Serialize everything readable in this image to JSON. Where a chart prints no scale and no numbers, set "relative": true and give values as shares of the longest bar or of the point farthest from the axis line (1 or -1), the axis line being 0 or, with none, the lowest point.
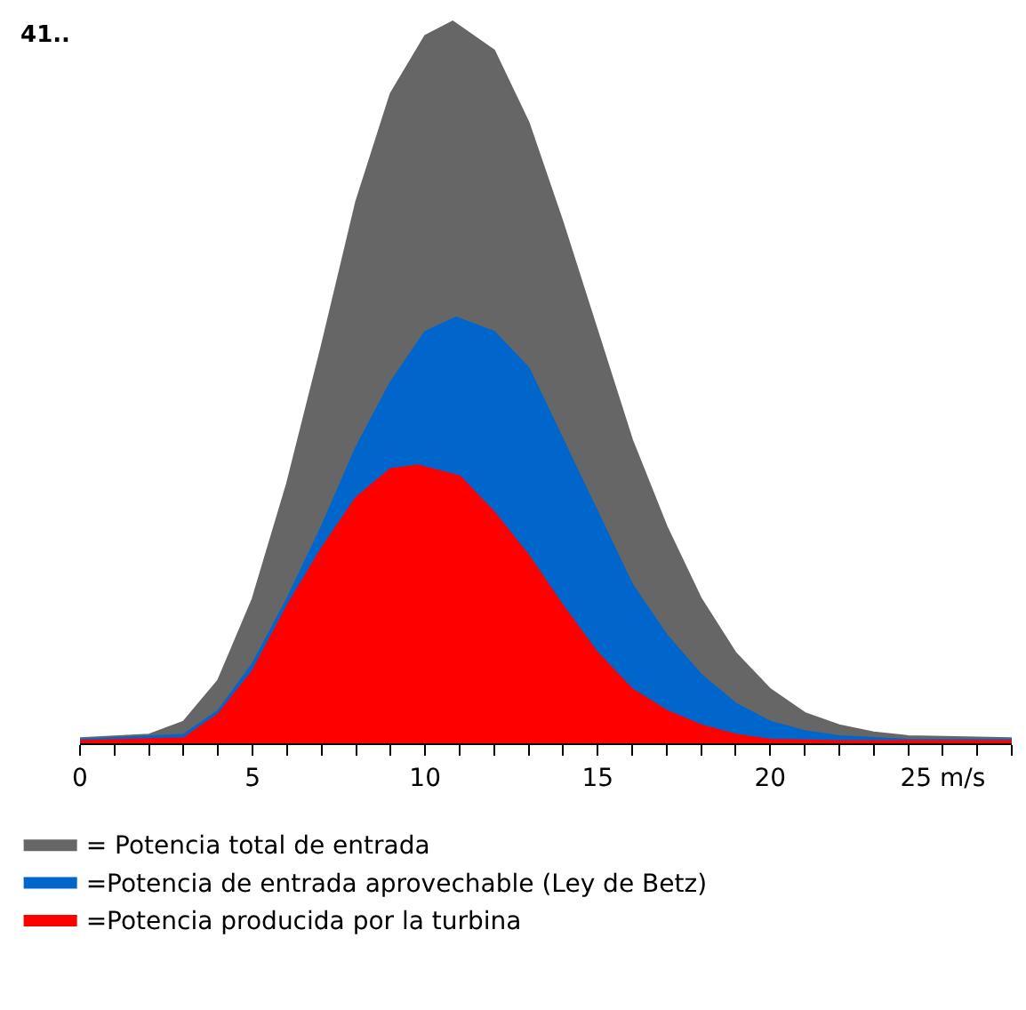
{
  "chart_data": {
    "type": "area",
    "title": "41..",
    "relative": true,
    "legend": "bottom",
    "grid": false,
    "xlim": [
      0,
      27
    ],
    "xticks": [
      0,
      {
        "value": 1,
        "label": null
      },
      {
        "value": 2,
        "label": null
      },
      {
        "value": 3,
        "label": null
      },
      {
        "value": 4,
        "label": null
      },
      5,
      {
        "value": 6,
        "label": null
      },
      {
        "value": 7,
        "label": null
      },
      {
        "value": 8,
        "label": null
      },
      {
        "value": 9,
        "label": null
      },
      10,
      {
        "value": 11,
        "label": null
      },
      {
        "value": 12,
        "label": null
      },
      {
        "value": 13,
        "label": null
      },
      {
        "value": 14,
        "label": null
      },
      15,
      {
        "value": 16,
        "label": null
      },
      {
        "value": 17,
        "label": null
      },
      {
        "value": 18,
        "label": null
      },
      {
        "value": 19,
        "label": null
      },
      20,
      {
        "value": 21,
        "label": null
      },
      {
        "value": 22,
        "label": null
      },
      {
        "value": 23,
        "label": null
      },
      {
        "value": 24,
        "label": null
      },
      {
        "value": 25,
        "label": "25 m/s"
      },
      {
        "value": 26,
        "label": null
      },
      {
        "value": 27,
        "label": null
      }
    ],
    "series": [
      {
        "name": "= Potencia total de entrada",
        "color": "#666666",
        "x": [
          0,
          2,
          3,
          4,
          5,
          6,
          7,
          8,
          9,
          10,
          10.8,
          12,
          13,
          14,
          15,
          16,
          17,
          18,
          19,
          20,
          21,
          22,
          23,
          24,
          27
        ],
        "values": [
          0.007,
          0.012,
          0.03,
          0.087,
          0.2,
          0.36,
          0.55,
          0.75,
          0.9,
          0.98,
          1,
          0.96,
          0.86,
          0.72,
          0.57,
          0.42,
          0.3,
          0.2,
          0.125,
          0.075,
          0.042,
          0.025,
          0.015,
          0.01,
          0.007
        ]
      },
      {
        "name": "=Potencia de entrada aprovechable (Ley de Betz)",
        "color": "#0066cc",
        "x": [
          0,
          3,
          4,
          5,
          6,
          7,
          8,
          9,
          10,
          10.9,
          12,
          13,
          14,
          15,
          16,
          17,
          18,
          19,
          20,
          21,
          22,
          24,
          27
        ],
        "values": [
          0.005,
          0.012,
          0.045,
          0.11,
          0.2,
          0.3,
          0.41,
          0.5,
          0.57,
          0.59,
          0.57,
          0.52,
          0.42,
          0.32,
          0.22,
          0.15,
          0.095,
          0.055,
          0.03,
          0.017,
          0.01,
          0.005,
          0.005
        ]
      },
      {
        "name": "=Potencia producida por la turbina",
        "color": "#ff0000",
        "x": [
          0,
          3,
          4,
          5,
          6,
          7,
          8,
          9,
          9.8,
          11,
          12,
          13,
          14,
          15,
          16,
          17,
          18,
          19,
          20,
          22,
          27
        ],
        "values": [
          0.003,
          0.007,
          0.04,
          0.1,
          0.19,
          0.27,
          0.34,
          0.38,
          0.385,
          0.37,
          0.32,
          0.26,
          0.19,
          0.125,
          0.075,
          0.045,
          0.025,
          0.012,
          0.005,
          0.003,
          0.003
        ]
      }
    ]
  }
}
